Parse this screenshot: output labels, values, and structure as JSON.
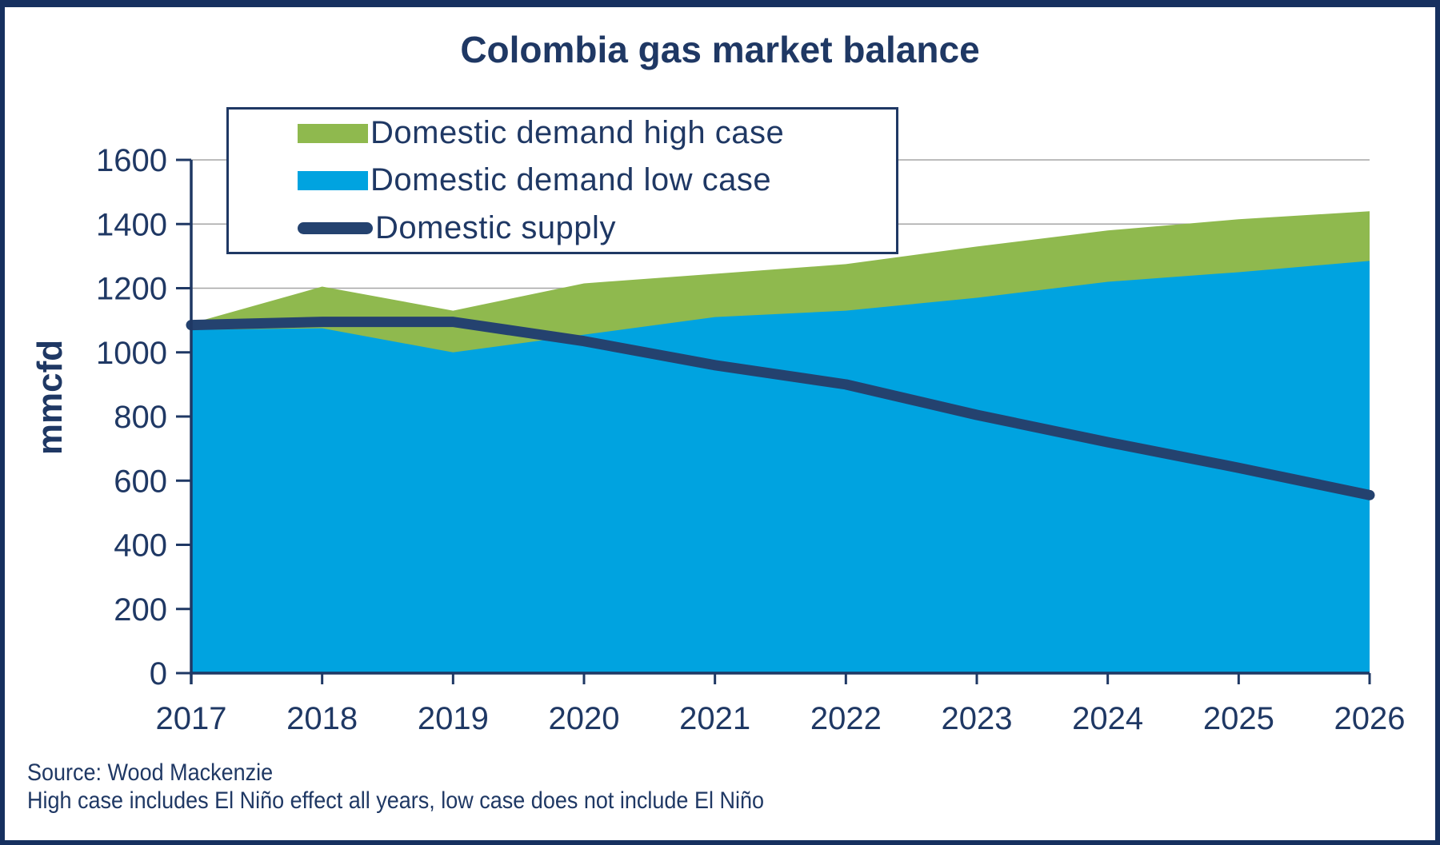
{
  "title": "Colombia gas market balance",
  "y_axis_label": "mmcfd",
  "legend": {
    "items": [
      {
        "label": "Domestic demand high case",
        "type": "area",
        "color": "#8FB94E"
      },
      {
        "label": "Domestic demand low case",
        "type": "area",
        "color": "#00A3E0"
      },
      {
        "label": "Domestic supply",
        "type": "line",
        "color": "#24426F"
      }
    ]
  },
  "source": {
    "line1": "Source: Wood Mackenzie",
    "line2": "High case includes El Niño effect all years, low case does not include El Niño"
  },
  "colors": {
    "navy_text": "#1F3864",
    "axis": "#1F3864",
    "gridline": "#A6A6A6",
    "frame_border": "#16305F",
    "background": "#FFFFFF"
  },
  "chart_data": {
    "type": "area",
    "title": "Colombia gas market balance",
    "ylabel": "mmcfd",
    "x": [
      2017,
      2018,
      2019,
      2020,
      2021,
      2022,
      2023,
      2024,
      2025,
      2026
    ],
    "series": [
      {
        "name": "Domestic demand high case",
        "type": "area",
        "color": "#8FB94E",
        "values": [
          1090,
          1205,
          1130,
          1215,
          1245,
          1275,
          1330,
          1380,
          1415,
          1440
        ]
      },
      {
        "name": "Domestic demand low case",
        "type": "area",
        "color": "#00A3E0",
        "values": [
          1070,
          1075,
          1000,
          1055,
          1110,
          1130,
          1170,
          1220,
          1250,
          1285
        ]
      },
      {
        "name": "Domestic supply",
        "type": "line",
        "color": "#24426F",
        "values": [
          1085,
          1095,
          1095,
          1035,
          960,
          900,
          805,
          720,
          640,
          555
        ]
      }
    ],
    "ylim": [
      0,
      1600
    ],
    "yticks": [
      0,
      200,
      400,
      600,
      800,
      1000,
      1200,
      1400,
      1600
    ],
    "grid": true,
    "legend_position": "top-left-inside"
  }
}
